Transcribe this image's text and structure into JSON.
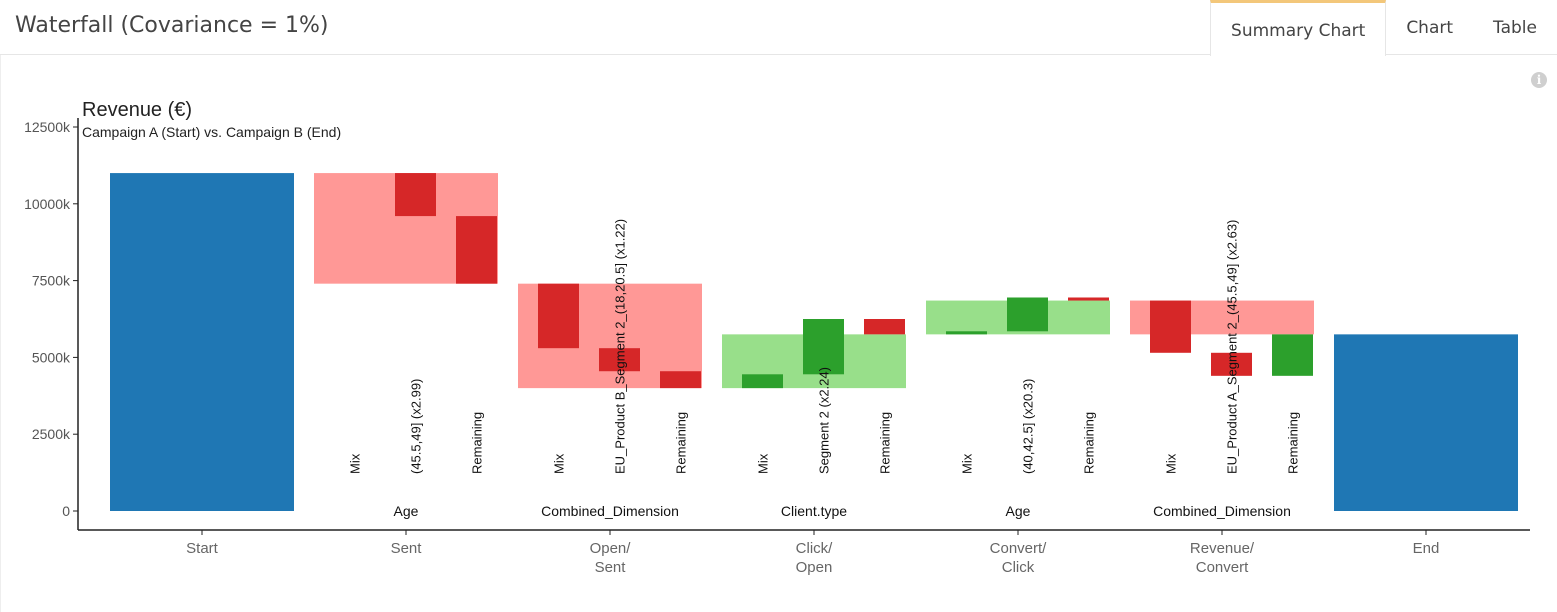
{
  "header": {
    "title": "Waterfall (Covariance = 1%)",
    "tabs": [
      {
        "label": "Summary Chart",
        "active": true
      },
      {
        "label": "Chart",
        "active": false
      },
      {
        "label": "Table",
        "active": false
      }
    ]
  },
  "info_icon": "info-circle-icon",
  "colors": {
    "total": "#1f77b4",
    "negative_dark": "#d62728",
    "negative_light": "#ff9896",
    "positive_dark": "#2ca02c",
    "positive_light": "#98df8a",
    "active_tab_accent": "#f3c77a"
  },
  "chart_data": {
    "type": "bar",
    "title": "Revenue (€)",
    "subtitle": "Campaign A (Start) vs. Campaign B (End)",
    "ylim": [
      0,
      12500
    ],
    "yticks": [
      0,
      2500,
      5000,
      7500,
      10000,
      12500
    ],
    "ytick_labels": [
      "0",
      "2500k",
      "5000k",
      "7500k",
      "10000k",
      "12500k"
    ],
    "categories": [
      {
        "label": "Start",
        "lines": [
          "Start"
        ]
      },
      {
        "label": "Sent",
        "lines": [
          "Sent"
        ]
      },
      {
        "label": "Open/ Sent",
        "lines": [
          "Open/",
          "Sent"
        ]
      },
      {
        "label": "Click/ Open",
        "lines": [
          "Click/",
          "Open"
        ]
      },
      {
        "label": "Convert/ Click",
        "lines": [
          "Convert/",
          "Click"
        ]
      },
      {
        "label": "Revenue/ Convert",
        "lines": [
          "Revenue/",
          "Convert"
        ]
      },
      {
        "label": "End",
        "lines": [
          "End"
        ]
      }
    ],
    "totals": [
      {
        "category": "Start",
        "value": 11000
      },
      {
        "category": "End",
        "value": 5750
      }
    ],
    "steps": [
      {
        "category": "Sent",
        "dimension": "Age",
        "from": 11000,
        "to": 7400,
        "components": [
          {
            "label": "Mix",
            "from": 11000,
            "to": 11000
          },
          {
            "label": "(45.5,49] (x2.99)",
            "from": 11000,
            "to": 9600
          },
          {
            "label": "Remaining",
            "from": 9600,
            "to": 7400
          }
        ]
      },
      {
        "category": "Open/ Sent",
        "dimension": "Combined_Dimension",
        "from": 7400,
        "to": 4000,
        "components": [
          {
            "label": "Mix",
            "from": 7400,
            "to": 5300
          },
          {
            "label": "EU_Product B_Segment 2_(18,20.5] (x1.22)",
            "from": 5300,
            "to": 4550
          },
          {
            "label": "Remaining",
            "from": 4550,
            "to": 4000
          }
        ]
      },
      {
        "category": "Click/ Open",
        "dimension": "Client.type",
        "from": 4000,
        "to": 5750,
        "components": [
          {
            "label": "Mix",
            "from": 4000,
            "to": 4450
          },
          {
            "label": "Segment 2 (x2.24)",
            "from": 4450,
            "to": 6250
          },
          {
            "label": "Remaining",
            "from": 6250,
            "to": 5750
          }
        ]
      },
      {
        "category": "Convert/ Click",
        "dimension": "Age",
        "from": 5750,
        "to": 6850,
        "components": [
          {
            "label": "Mix",
            "from": 5750,
            "to": 5850
          },
          {
            "label": "(40,42.5] (x20.3)",
            "from": 5850,
            "to": 6950
          },
          {
            "label": "Remaining",
            "from": 6950,
            "to": 6850
          }
        ]
      },
      {
        "category": "Revenue/ Convert",
        "dimension": "Combined_Dimension",
        "from": 6850,
        "to": 5750,
        "components": [
          {
            "label": "Mix",
            "from": 6850,
            "to": 5150
          },
          {
            "label": "EU_Product A_Segment 2_(45.5,49] (x2.63)",
            "from": 5150,
            "to": 4400
          },
          {
            "label": "Remaining",
            "from": 4400,
            "to": 5750
          }
        ]
      }
    ]
  }
}
